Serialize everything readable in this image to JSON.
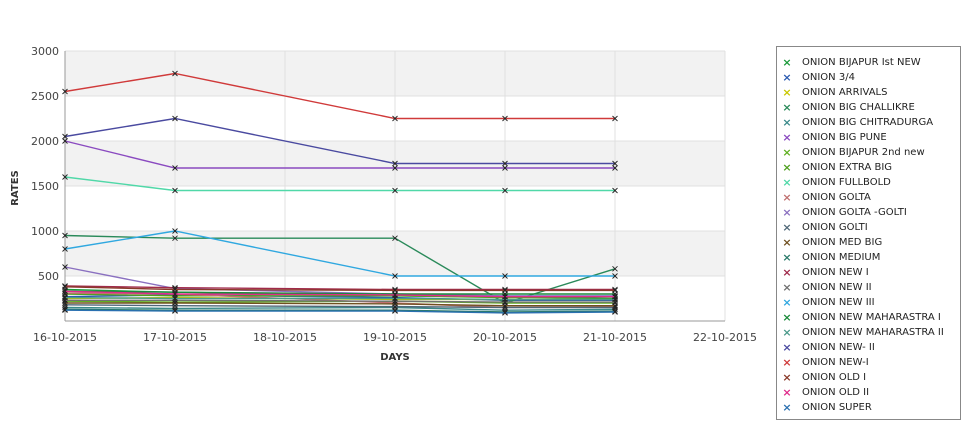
{
  "chart_data": {
    "type": "line",
    "title": "",
    "xlabel": "DAYS",
    "ylabel": "RATES",
    "x_ticks": [
      "16-10-2015",
      "17-10-2015",
      "18-10-2015",
      "19-10-2015",
      "20-10-2015",
      "21-10-2015",
      "22-10-2015"
    ],
    "y_ticks": [
      "500",
      "1000",
      "1500",
      "2000",
      "2500",
      "3000"
    ],
    "ylim": [
      0,
      3000
    ],
    "grid": true,
    "legend_position": "right",
    "series": [
      {
        "name": " ONION BIJAPUR Ist NEW",
        "color": "#1a9a3a",
        "points": [
          [
            "16-10-2015",
            350
          ],
          [
            "17-10-2015",
            320
          ],
          [
            "19-10-2015",
            280
          ],
          [
            "21-10-2015",
            250
          ]
        ]
      },
      {
        "name": "ONION 3/4",
        "color": "#2a5ab0",
        "points": [
          [
            "16-10-2015",
            270
          ],
          [
            "17-10-2015",
            290
          ],
          [
            "19-10-2015",
            260
          ],
          [
            "20-10-2015",
            230
          ],
          [
            "21-10-2015",
            230
          ]
        ]
      },
      {
        "name": "ONION ARRIVALS",
        "color": "#c8c800",
        "points": [
          [
            "16-10-2015",
            250
          ],
          [
            "17-10-2015",
            260
          ],
          [
            "19-10-2015",
            240
          ],
          [
            "20-10-2015",
            240
          ],
          [
            "21-10-2015",
            240
          ]
        ]
      },
      {
        "name": "ONION BIG CHALLIKRE",
        "color": "#2a8a5a",
        "points": [
          [
            "16-10-2015",
            950
          ],
          [
            "17-10-2015",
            920
          ],
          [
            "19-10-2015",
            920
          ],
          [
            "20-10-2015",
            200
          ],
          [
            "21-10-2015",
            580
          ]
        ]
      },
      {
        "name": "ONION BIG CHITRADURGA",
        "color": "#3a8a8a",
        "points": [
          [
            "16-10-2015",
            150
          ],
          [
            "17-10-2015",
            140
          ],
          [
            "19-10-2015",
            150
          ],
          [
            "20-10-2015",
            120
          ],
          [
            "21-10-2015",
            130
          ]
        ]
      },
      {
        "name": "ONION BIG PUNE",
        "color": "#8a4ac0",
        "points": [
          [
            "16-10-2015",
            2000
          ],
          [
            "17-10-2015",
            1700
          ],
          [
            "19-10-2015",
            1700
          ],
          [
            "20-10-2015",
            1700
          ],
          [
            "21-10-2015",
            1700
          ]
        ]
      },
      {
        "name": "ONION BIJAPUR 2nd new",
        "color": "#60b020",
        "points": [
          [
            "16-10-2015",
            220
          ],
          [
            "17-10-2015",
            210
          ],
          [
            "19-10-2015",
            220
          ],
          [
            "20-10-2015",
            200
          ],
          [
            "21-10-2015",
            200
          ]
        ]
      },
      {
        "name": "ONION EXTRA BIG",
        "color": "#50a020",
        "points": [
          [
            "16-10-2015",
            300
          ],
          [
            "17-10-2015",
            280
          ],
          [
            "19-10-2015",
            280
          ],
          [
            "20-10-2015",
            260
          ],
          [
            "21-10-2015",
            270
          ]
        ]
      },
      {
        "name": "ONION FULLBOLD",
        "color": "#50d8a8",
        "points": [
          [
            "16-10-2015",
            1600
          ],
          [
            "17-10-2015",
            1450
          ],
          [
            "19-10-2015",
            1450
          ],
          [
            "20-10-2015",
            1450
          ],
          [
            "21-10-2015",
            1450
          ]
        ]
      },
      {
        "name": "ONION GOLTA",
        "color": "#c07070",
        "points": [
          [
            "16-10-2015",
            310
          ],
          [
            "17-10-2015",
            300
          ],
          [
            "19-10-2015",
            200
          ],
          [
            "20-10-2015",
            150
          ],
          [
            "21-10-2015",
            160
          ]
        ]
      },
      {
        "name": "ONION GOLTA -GOLTI",
        "color": "#8a70c0",
        "points": [
          [
            "16-10-2015",
            600
          ],
          [
            "17-10-2015",
            360
          ],
          [
            "19-10-2015",
            300
          ],
          [
            "20-10-2015",
            280
          ],
          [
            "21-10-2015",
            280
          ]
        ]
      },
      {
        "name": "ONION GOLTI",
        "color": "#506878",
        "points": [
          [
            "16-10-2015",
            180
          ],
          [
            "17-10-2015",
            170
          ],
          [
            "19-10-2015",
            160
          ],
          [
            "20-10-2015",
            150
          ],
          [
            "21-10-2015",
            150
          ]
        ]
      },
      {
        "name": "ONION MED BIG",
        "color": "#705020",
        "points": [
          [
            "16-10-2015",
            200
          ],
          [
            "17-10-2015",
            200
          ],
          [
            "19-10-2015",
            190
          ],
          [
            "20-10-2015",
            170
          ],
          [
            "21-10-2015",
            170
          ]
        ]
      },
      {
        "name": "ONION MEDIUM",
        "color": "#2a7a6a",
        "points": [
          [
            "16-10-2015",
            130
          ],
          [
            "17-10-2015",
            120
          ],
          [
            "19-10-2015",
            120
          ],
          [
            "20-10-2015",
            100
          ],
          [
            "21-10-2015",
            110
          ]
        ]
      },
      {
        "name": "ONION NEW I",
        "color": "#a02a4a",
        "points": [
          [
            "16-10-2015",
            390
          ],
          [
            "17-10-2015",
            370
          ],
          [
            "19-10-2015",
            350
          ],
          [
            "20-10-2015",
            350
          ],
          [
            "21-10-2015",
            350
          ]
        ]
      },
      {
        "name": "ONION NEW II",
        "color": "#707070",
        "points": [
          [
            "16-10-2015",
            230
          ],
          [
            "17-10-2015",
            230
          ],
          [
            "19-10-2015",
            220
          ],
          [
            "20-10-2015",
            210
          ],
          [
            "21-10-2015",
            210
          ]
        ]
      },
      {
        "name": "ONION NEW III",
        "color": "#30a8e0",
        "points": [
          [
            "16-10-2015",
            800
          ],
          [
            "17-10-2015",
            1000
          ],
          [
            "19-10-2015",
            500
          ],
          [
            "20-10-2015",
            500
          ],
          [
            "21-10-2015",
            500
          ]
        ]
      },
      {
        "name": "ONION NEW MAHARASTRA I",
        "color": "#1a8a3a",
        "points": [
          [
            "16-10-2015",
            330
          ],
          [
            "17-10-2015",
            320
          ],
          [
            "19-10-2015",
            300
          ],
          [
            "20-10-2015",
            300
          ],
          [
            "21-10-2015",
            300
          ]
        ]
      },
      {
        "name": "ONION NEW MAHARASTRA II",
        "color": "#4a9a8a",
        "points": [
          [
            "16-10-2015",
            260
          ],
          [
            "17-10-2015",
            250
          ],
          [
            "19-10-2015",
            250
          ],
          [
            "20-10-2015",
            240
          ],
          [
            "21-10-2015",
            240
          ]
        ]
      },
      {
        "name": "ONION NEW- II",
        "color": "#4a4aa0",
        "points": [
          [
            "16-10-2015",
            2050
          ],
          [
            "17-10-2015",
            2250
          ],
          [
            "19-10-2015",
            1750
          ],
          [
            "20-10-2015",
            1750
          ],
          [
            "21-10-2015",
            1750
          ]
        ]
      },
      {
        "name": "ONION NEW-I",
        "color": "#d03a3a",
        "points": [
          [
            "16-10-2015",
            2550
          ],
          [
            "17-10-2015",
            2750
          ],
          [
            "19-10-2015",
            2250
          ],
          [
            "20-10-2015",
            2250
          ],
          [
            "21-10-2015",
            2250
          ]
        ]
      },
      {
        "name": "ONION OLD I",
        "color": "#8a3a2a",
        "points": [
          [
            "16-10-2015",
            380
          ],
          [
            "17-10-2015",
            350
          ],
          [
            "19-10-2015",
            340
          ],
          [
            "20-10-2015",
            340
          ],
          [
            "21-10-2015",
            340
          ]
        ]
      },
      {
        "name": "ONION OLD II",
        "color": "#e02a8a",
        "points": [
          [
            "16-10-2015",
            330
          ],
          [
            "17-10-2015",
            300
          ],
          [
            "19-10-2015",
            290
          ],
          [
            "20-10-2015",
            270
          ],
          [
            "21-10-2015",
            270
          ]
        ]
      },
      {
        "name": "ONION SUPER",
        "color": "#2a70b0",
        "points": [
          [
            "16-10-2015",
            120
          ],
          [
            "17-10-2015",
            110
          ],
          [
            "19-10-2015",
            110
          ],
          [
            "20-10-2015",
            90
          ],
          [
            "21-10-2015",
            100
          ]
        ]
      }
    ]
  }
}
